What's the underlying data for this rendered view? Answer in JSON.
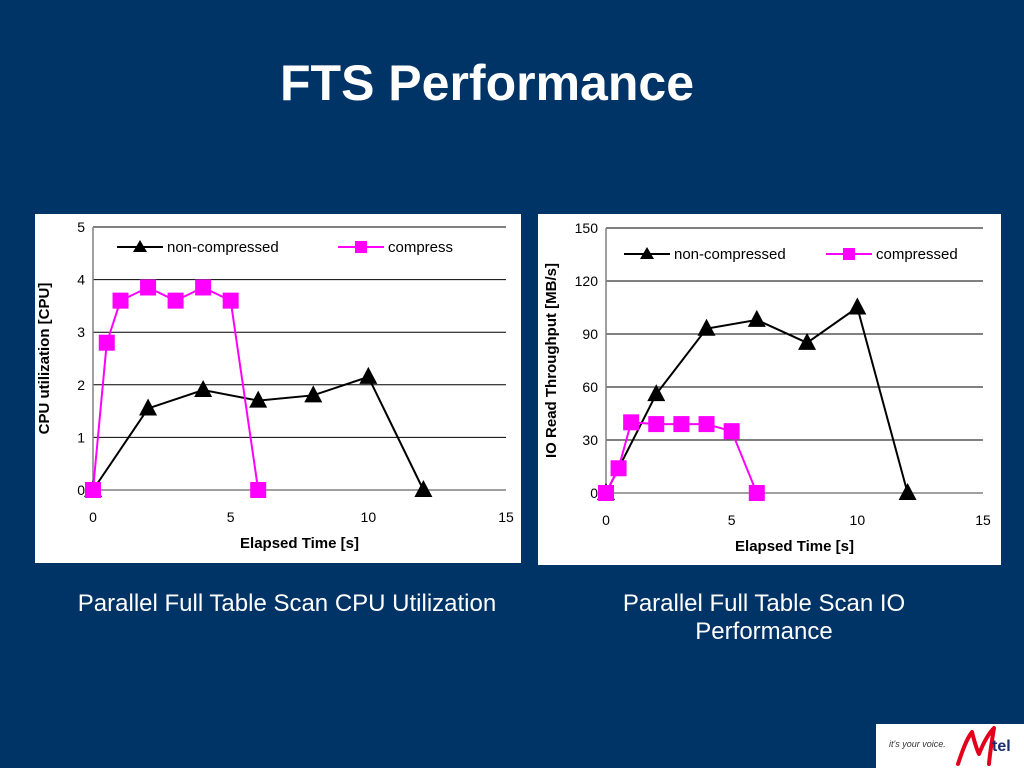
{
  "slide": {
    "title": "FTS Performance",
    "captions": [
      "Parallel Full Table Scan CPU Utilization",
      "Parallel Full Table Scan IO Performance"
    ]
  },
  "logo": {
    "tagline": "it's your voice.",
    "brand": "Mtel"
  },
  "colors": {
    "background": "#003366",
    "non_compressed": "#000000",
    "compressed": "#ff00ff",
    "text": "#ffffff"
  },
  "chart_data": [
    {
      "type": "line",
      "title": "",
      "xlabel": "Elapsed Time [s]",
      "ylabel": "CPU utilization [CPU]",
      "xlim": [
        0,
        15
      ],
      "ylim": [
        0,
        5
      ],
      "xticks": [
        0,
        5,
        10,
        15
      ],
      "yticks": [
        0,
        1,
        2,
        3,
        4,
        5
      ],
      "grid": "horizontal",
      "legend": "top",
      "series": [
        {
          "name": "non-compressed",
          "marker": "triangle",
          "color": "#000000",
          "x": [
            0,
            2,
            4,
            6,
            8,
            10,
            12
          ],
          "y": [
            0,
            1.55,
            1.9,
            1.7,
            1.8,
            2.15,
            0
          ]
        },
        {
          "name": "compress",
          "marker": "square",
          "color": "#ff00ff",
          "x": [
            0,
            0.5,
            1,
            2,
            3,
            4,
            5,
            6
          ],
          "y": [
            0,
            2.8,
            3.6,
            3.85,
            3.6,
            3.85,
            3.6,
            0
          ]
        }
      ]
    },
    {
      "type": "line",
      "title": "",
      "xlabel": "Elapsed Time [s]",
      "ylabel": "IO Read Throughput [MB/s]",
      "xlim": [
        0,
        15
      ],
      "ylim": [
        0,
        150
      ],
      "xticks": [
        0,
        5,
        10,
        15
      ],
      "yticks": [
        0,
        30,
        60,
        90,
        120,
        150
      ],
      "grid": "horizontal",
      "legend": "top",
      "series": [
        {
          "name": "non-compressed",
          "marker": "triangle",
          "color": "#000000",
          "x": [
            0,
            2,
            4,
            6,
            8,
            10,
            12
          ],
          "y": [
            0,
            56,
            93,
            98,
            85,
            105,
            0
          ]
        },
        {
          "name": "compressed",
          "marker": "square",
          "color": "#ff00ff",
          "x": [
            0,
            0.5,
            1,
            2,
            3,
            4,
            5,
            6
          ],
          "y": [
            0,
            14,
            40,
            39,
            39,
            39,
            35,
            0
          ]
        }
      ]
    }
  ]
}
